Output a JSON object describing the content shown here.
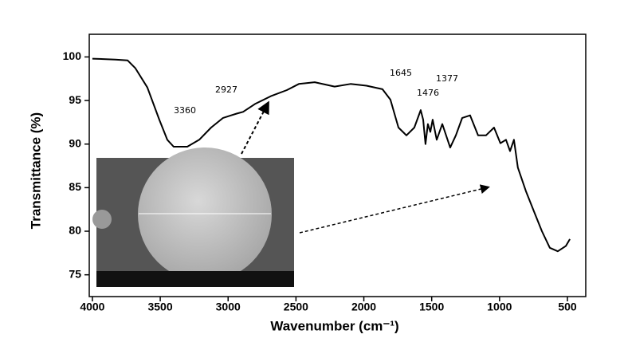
{
  "chart_data": {
    "type": "line",
    "x_label": "Wavenumber (cm⁻¹)",
    "y_label": "Transmittance (%)",
    "xlim": [
      4023,
      365
    ],
    "ylim": [
      72.5,
      102.6
    ],
    "xticks": [
      4000,
      3500,
      3000,
      2500,
      2000,
      1500,
      1000,
      500
    ],
    "yticks": [
      75,
      80,
      85,
      90,
      95,
      100
    ],
    "annotations": [
      "3360",
      "2927",
      "1645",
      "1377",
      "1476"
    ],
    "series": [
      {
        "color": "#000000",
        "x": [
          4000,
          3830,
          3740,
          3683,
          3595,
          3507,
          3448,
          3401,
          3301,
          3213,
          3125,
          3037,
          2978,
          2937,
          2890,
          2802,
          2685,
          2567,
          2479,
          2362,
          2215,
          2098,
          1980,
          1863,
          1804,
          1745,
          1686,
          1628,
          1581,
          1563,
          1546,
          1528,
          1510,
          1493,
          1463,
          1422,
          1364,
          1322,
          1275,
          1217,
          1158,
          1100,
          1041,
          994,
          953,
          923,
          894,
          865,
          806,
          747,
          688,
          630,
          571,
          512,
          482
        ],
        "values": [
          99.8,
          99.7,
          99.6,
          98.7,
          96.5,
          92.8,
          90.5,
          89.7,
          89.7,
          90.5,
          91.9,
          93.0,
          93.3,
          93.5,
          93.7,
          94.6,
          95.5,
          96.2,
          96.9,
          97.1,
          96.6,
          96.9,
          96.7,
          96.3,
          95.1,
          91.9,
          91.0,
          91.9,
          93.9,
          92.8,
          90.0,
          92.3,
          91.4,
          92.8,
          90.5,
          92.3,
          89.6,
          91.0,
          93.0,
          93.3,
          91.0,
          91.0,
          91.9,
          90.1,
          90.5,
          89.2,
          90.5,
          87.3,
          84.6,
          82.3,
          80.0,
          78.1,
          77.7,
          78.3,
          79.1
        ]
      }
    ]
  }
}
